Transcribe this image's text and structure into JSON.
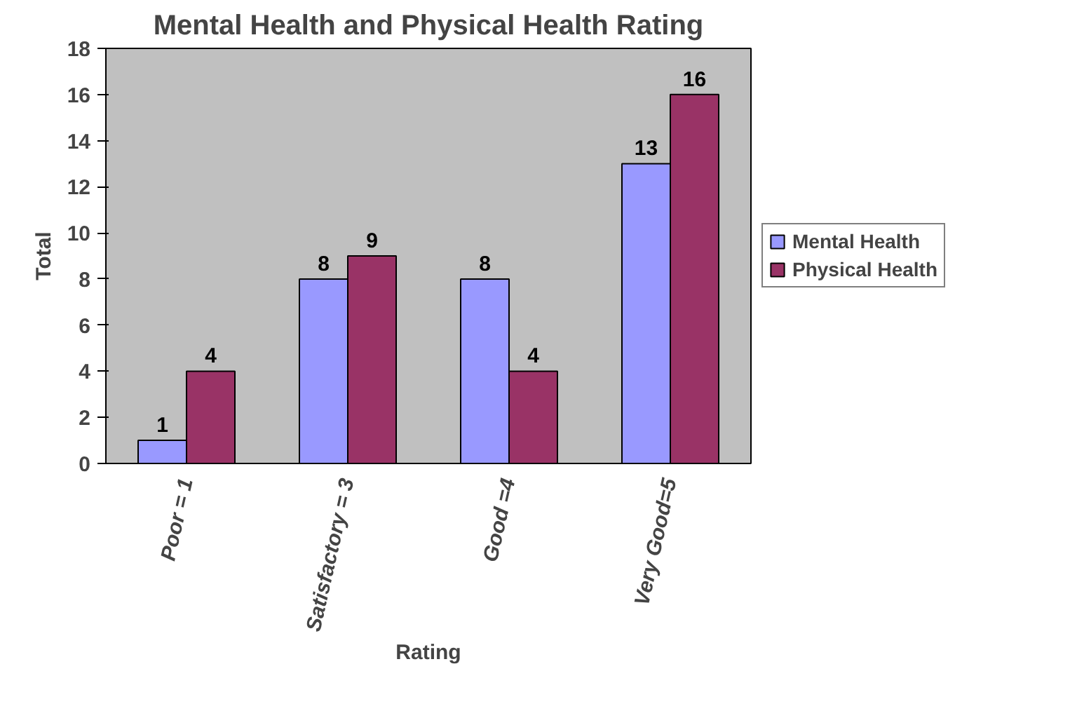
{
  "chart_data": {
    "type": "bar",
    "title": "Mental Health and Physical Health Rating",
    "xlabel": "Rating",
    "ylabel": "Total",
    "categories": [
      "Poor = 1",
      "Satisfactory = 3",
      "Good =4",
      "Very Good=5"
    ],
    "series": [
      {
        "name": "Mental Health",
        "color": "#9999ff",
        "values": [
          1,
          8,
          8,
          13
        ]
      },
      {
        "name": "Physical Health",
        "color": "#993366",
        "values": [
          4,
          9,
          4,
          16
        ]
      }
    ],
    "ylim": [
      0,
      18
    ],
    "yticks": [
      0,
      2,
      4,
      6,
      8,
      10,
      12,
      14,
      16,
      18
    ],
    "grid": false,
    "legend": "right",
    "data_labels": true
  }
}
